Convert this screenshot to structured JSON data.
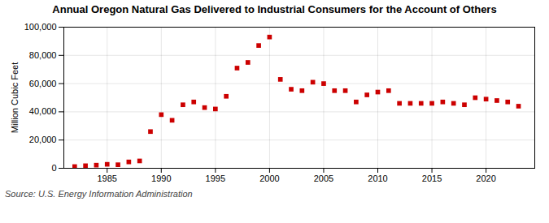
{
  "chart_data": {
    "type": "scatter",
    "title": "Annual Oregon Natural Gas Delivered to Industrial Consumers for the Account of Others",
    "ylabel": "Million Cubic Feet",
    "source": "Source: U.S. Energy Information Administration",
    "x": [
      1982,
      1983,
      1984,
      1985,
      1986,
      1987,
      1988,
      1989,
      1990,
      1991,
      1992,
      1993,
      1994,
      1995,
      1996,
      1997,
      1998,
      1999,
      2000,
      2001,
      2002,
      2003,
      2004,
      2005,
      2006,
      2007,
      2008,
      2009,
      2010,
      2011,
      2012,
      2013,
      2014,
      2015,
      2016,
      2017,
      2018,
      2019,
      2020,
      2021,
      2022,
      2023
    ],
    "values": [
      1200,
      1800,
      2200,
      2800,
      2500,
      4500,
      5200,
      26000,
      38000,
      34000,
      45000,
      47000,
      43000,
      42000,
      51000,
      71000,
      75000,
      87000,
      93000,
      63000,
      56000,
      55000,
      61000,
      60000,
      55000,
      55000,
      47000,
      52000,
      54000,
      55000,
      46000,
      46000,
      46000,
      46000,
      47000,
      46000,
      45000,
      50000,
      49000,
      48000,
      47000,
      44000
    ],
    "color": "#cc0000",
    "marker": "square",
    "xlim": [
      1981,
      2024.5
    ],
    "xticks": [
      1985,
      1990,
      1995,
      2000,
      2005,
      2010,
      2015,
      2020
    ],
    "ylim": [
      0,
      100000
    ],
    "yticks": [
      0,
      {
        "value": 20000,
        "label": "20,000"
      },
      {
        "value": 40000,
        "label": "40,000"
      },
      {
        "value": 60000,
        "label": "60,000"
      },
      {
        "value": 80000,
        "label": "80,000"
      },
      {
        "value": 100000,
        "label": "100,000"
      }
    ],
    "grid": true
  }
}
